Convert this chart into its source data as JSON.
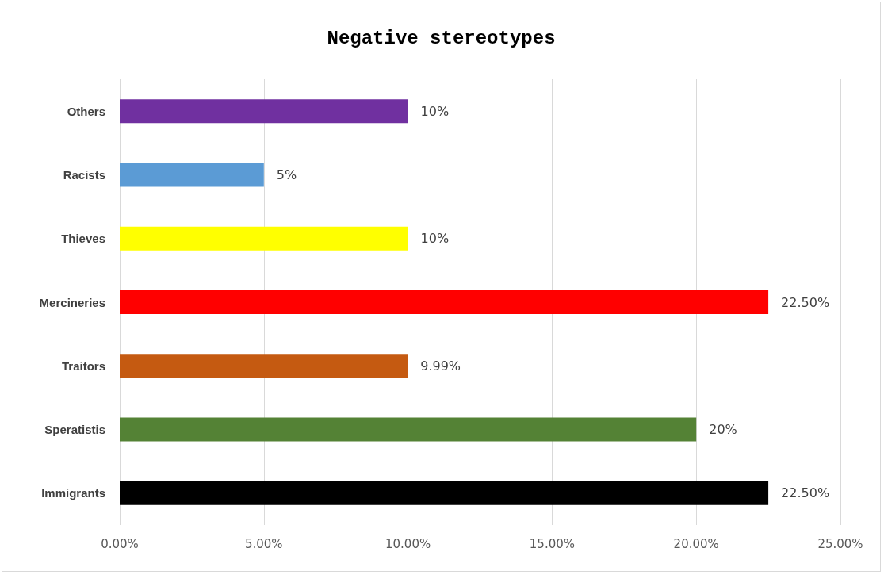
{
  "chart_data": {
    "type": "bar",
    "orientation": "horizontal",
    "title": "Negative stereotypes",
    "categories": [
      "Others",
      "Racists",
      "Thieves",
      "Mercineries",
      "Traitors",
      "Speratistis",
      "Immigrants"
    ],
    "values": [
      10,
      5,
      10,
      22.5,
      9.99,
      20,
      22.5
    ],
    "colors": [
      "#7030a0",
      "#5b9bd5",
      "#ffff00",
      "#ff0000",
      "#c55a11",
      "#548235",
      "#000000"
    ],
    "value_labels": [
      "10%",
      "5%",
      "10%",
      "22.50%",
      "9.99%",
      "20%",
      "22.50%"
    ],
    "xlim": [
      0,
      25
    ],
    "xticks": [
      {
        "value": 0,
        "label": "0.00%"
      },
      {
        "value": 5,
        "label": "5.00%"
      },
      {
        "value": 10,
        "label": "10.00%"
      },
      {
        "value": 15,
        "label": "15.00%"
      },
      {
        "value": 20,
        "label": "20.00%"
      },
      {
        "value": 25,
        "label": "25.00%"
      }
    ],
    "grid": "x"
  }
}
